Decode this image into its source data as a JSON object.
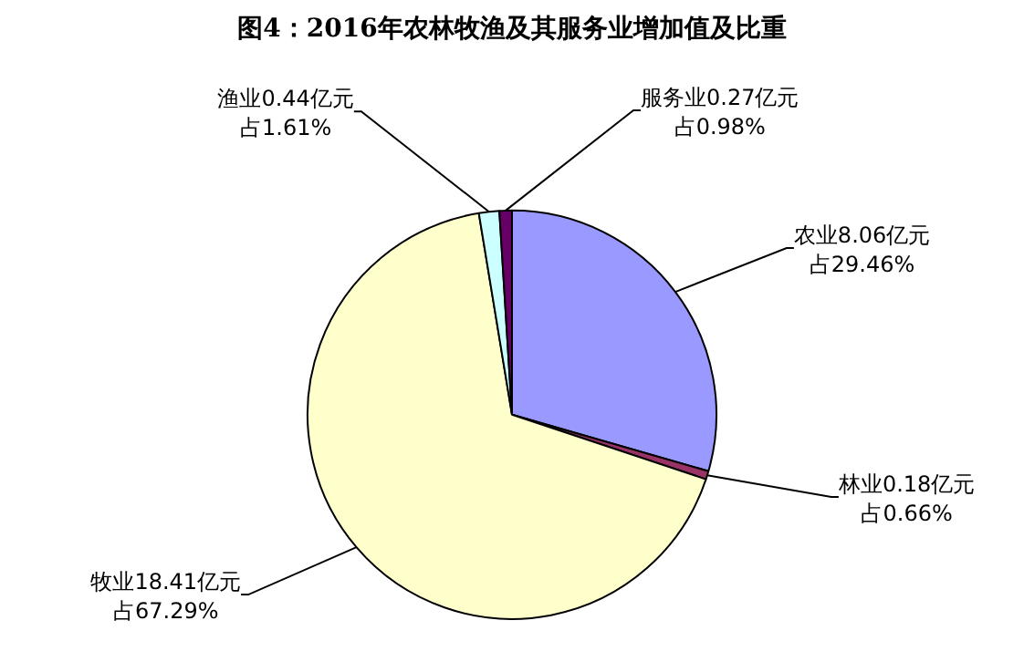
{
  "chart_data": {
    "type": "pie",
    "title": "图4：2016年农林牧渔及其服务业增加值及比重",
    "categories": [
      "农业",
      "林业",
      "牧业",
      "渔业",
      "服务业"
    ],
    "values": [
      8.06,
      0.18,
      18.41,
      0.44,
      0.27
    ],
    "value_labels": [
      "8.06亿元占29.46%",
      "0.18亿元占0.66%",
      "18.41亿元占67.29%",
      "0.44亿元占1.61%",
      "0.27亿元占0.98%"
    ],
    "colors": [
      "#9999ff",
      "#993366",
      "#ffffcc",
      "#ccffff",
      "#660066"
    ],
    "legend": false
  }
}
